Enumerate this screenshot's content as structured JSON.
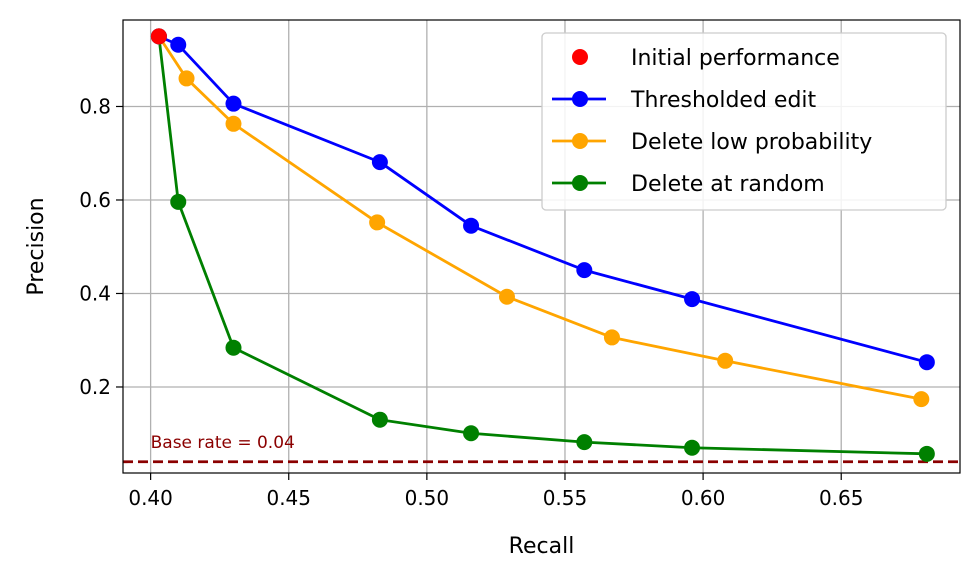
{
  "chart_data": {
    "type": "line",
    "title": "",
    "xlabel": "Recall",
    "ylabel": "Precision",
    "xlim": [
      0.39,
      0.693
    ],
    "ylim": [
      0.016,
      0.985
    ],
    "xticks": [
      0.4,
      0.45,
      0.5,
      0.55,
      0.6,
      0.65
    ],
    "xtick_labels": [
      "0.40",
      "0.45",
      "0.50",
      "0.55",
      "0.60",
      "0.65"
    ],
    "yticks": [
      0.2,
      0.4,
      0.6,
      0.8
    ],
    "ytick_labels": [
      "0.2",
      "0.4",
      "0.6",
      "0.8"
    ],
    "grid": true,
    "legend_position": "top-right",
    "series": [
      {
        "name": "Initial performance",
        "color": "#ff0000",
        "line": false,
        "marker": "circle",
        "x": [
          0.403
        ],
        "y": [
          0.95
        ]
      },
      {
        "name": "Thresholded edit",
        "color": "#0000ff",
        "line": true,
        "marker": "circle",
        "x": [
          0.403,
          0.41,
          0.43,
          0.483,
          0.516,
          0.557,
          0.596,
          0.681
        ],
        "y": [
          0.95,
          0.932,
          0.806,
          0.681,
          0.545,
          0.45,
          0.388,
          0.253
        ]
      },
      {
        "name": "Delete low probability",
        "color": "#ffa500",
        "line": true,
        "marker": "circle",
        "x": [
          0.403,
          0.413,
          0.43,
          0.482,
          0.529,
          0.567,
          0.608,
          0.679
        ],
        "y": [
          0.95,
          0.86,
          0.763,
          0.552,
          0.393,
          0.306,
          0.256,
          0.174
        ]
      },
      {
        "name": "Delete at random",
        "color": "#008000",
        "line": true,
        "marker": "circle",
        "x": [
          0.403,
          0.41,
          0.43,
          0.483,
          0.516,
          0.557,
          0.596,
          0.681
        ],
        "y": [
          0.95,
          0.596,
          0.284,
          0.13,
          0.101,
          0.082,
          0.07,
          0.057
        ]
      }
    ],
    "reference_line": {
      "label": "Base rate = 0.04",
      "y": 0.04,
      "color": "#8b0000",
      "style": "dashed"
    }
  }
}
